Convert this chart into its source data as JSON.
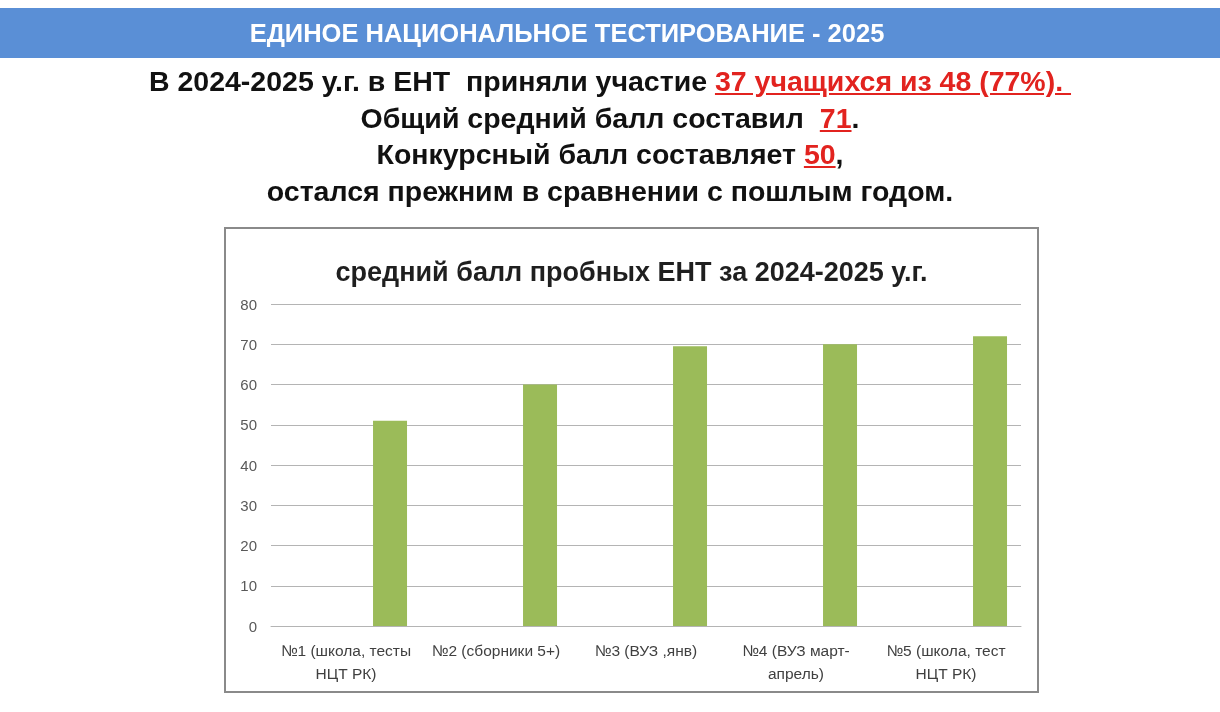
{
  "chart_data": {
    "type": "bar",
    "title": "средний балл пробных ЕНТ за 2024-2025 у.г.",
    "annotations": [
      "ЕДИНОЕ НАЦИОНАЛЬНОЕ ТЕСТИРОВАНИЕ - 2025",
      "В 2024-2025 у.г. в ЕНТ  приняли участие ",
      "37 учащихся из 48 (77%). ",
      "Общий средний балл составил  ",
      "71",
      ".",
      "Конкурсный балл составляет ",
      "50",
      ",",
      "остался прежним в сравнении с пошлым годом."
    ],
    "categories": [
      "№1 (школа, тесты НЦТ РК)",
      "№2 (сборники 5+)",
      "№3 (ВУЗ ,янв)",
      "№4 (ВУЗ март-апрель)",
      "№5 (школа, тест НЦТ РК)"
    ],
    "values": [
      51,
      60,
      69.5,
      70,
      72
    ],
    "color": "#9bbb59",
    "ylim": [
      0,
      80
    ],
    "yticks": [
      0,
      10,
      20,
      30,
      40,
      50,
      60,
      70,
      80
    ],
    "grid": "y"
  }
}
